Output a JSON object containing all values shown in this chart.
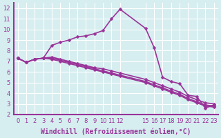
{
  "background_color": "#d6eef0",
  "grid_color": "#ffffff",
  "line_color": "#993399",
  "line_width": 1.2,
  "marker": "D",
  "marker_size": 2.5,
  "xlim": [
    -0.5,
    23.5
  ],
  "ylim": [
    2,
    12.5
  ],
  "xlabel": "Windchill (Refroidissement éolien,°C)",
  "xlabel_fontsize": 7,
  "xticks": [
    0,
    1,
    2,
    3,
    4,
    5,
    6,
    7,
    8,
    9,
    10,
    11,
    12,
    15,
    16,
    17,
    18,
    19,
    20,
    21,
    22,
    23
  ],
  "yticks": [
    2,
    3,
    4,
    5,
    6,
    7,
    8,
    9,
    10,
    11,
    12
  ],
  "tick_fontsize": 6,
  "x_values": [
    0,
    1,
    2,
    3,
    4,
    5,
    6,
    7,
    8,
    9,
    10,
    11,
    12,
    15,
    16,
    17,
    18,
    19,
    20,
    21,
    22,
    23
  ],
  "lines": [
    [
      7.3,
      6.9,
      7.2,
      7.3,
      8.5,
      8.8,
      9.0,
      9.3,
      9.4,
      9.6,
      9.9,
      11.0,
      11.9,
      10.1,
      8.3,
      5.5,
      5.1,
      4.9,
      3.8,
      3.7,
      2.6,
      2.9
    ],
    [
      7.3,
      6.9,
      7.2,
      7.3,
      7.4,
      7.2,
      7.0,
      6.8,
      6.6,
      6.4,
      6.3,
      6.1,
      5.9,
      5.3,
      5.0,
      4.7,
      4.4,
      4.1,
      3.7,
      3.4,
      3.1,
      3.0
    ],
    [
      7.3,
      6.9,
      7.2,
      7.3,
      7.3,
      7.1,
      6.9,
      6.7,
      6.5,
      6.3,
      6.1,
      5.9,
      5.7,
      5.1,
      4.8,
      4.5,
      4.2,
      3.9,
      3.5,
      3.2,
      2.9,
      2.8
    ],
    [
      7.3,
      6.9,
      7.2,
      7.3,
      7.2,
      7.0,
      6.8,
      6.6,
      6.4,
      6.2,
      6.0,
      5.8,
      5.6,
      5.0,
      4.7,
      4.4,
      4.1,
      3.8,
      3.4,
      3.1,
      2.8,
      2.7
    ]
  ]
}
